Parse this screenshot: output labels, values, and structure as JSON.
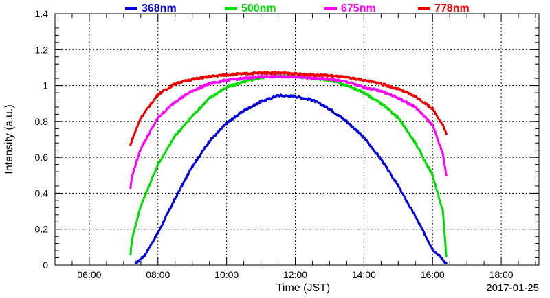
{
  "chart_data": {
    "type": "line",
    "title": "",
    "xlabel": "Time (JST)",
    "ylabel": "Intensity (a.u.)",
    "date_label": "2017-01-25",
    "x_unit": "hour_of_day_JST",
    "xlim": [
      5,
      19.1
    ],
    "ylim": [
      0,
      1.4
    ],
    "x_ticks": [
      6,
      8,
      10,
      12,
      14,
      16,
      18
    ],
    "x_tick_labels": [
      "06:00",
      "08:00",
      "10:00",
      "12:00",
      "14:00",
      "16:00",
      "18:00"
    ],
    "y_ticks": [
      0,
      0.2,
      0.4,
      0.6,
      0.8,
      1,
      1.2,
      1.4
    ],
    "y_tick_labels": [
      "0",
      "0.2",
      "0.4",
      "0.6",
      "0.8",
      "1",
      "1.2",
      "1.4"
    ],
    "grid": true,
    "legend_placement": "top",
    "series": [
      {
        "name": "368nm",
        "color": "#0000dd",
        "points": [
          [
            7.35,
            0.01
          ],
          [
            7.6,
            0.05
          ],
          [
            8.0,
            0.18
          ],
          [
            8.5,
            0.37
          ],
          [
            9.0,
            0.55
          ],
          [
            9.5,
            0.69
          ],
          [
            10.0,
            0.79
          ],
          [
            10.5,
            0.86
          ],
          [
            11.0,
            0.91
          ],
          [
            11.5,
            0.945
          ],
          [
            12.0,
            0.94
          ],
          [
            12.5,
            0.92
          ],
          [
            13.0,
            0.87
          ],
          [
            13.5,
            0.8
          ],
          [
            14.0,
            0.71
          ],
          [
            14.5,
            0.59
          ],
          [
            15.0,
            0.44
          ],
          [
            15.5,
            0.27
          ],
          [
            16.0,
            0.09
          ],
          [
            16.4,
            0.01
          ]
        ]
      },
      {
        "name": "500nm",
        "color": "#00dd00",
        "points": [
          [
            7.2,
            0.06
          ],
          [
            7.25,
            0.15
          ],
          [
            7.5,
            0.33
          ],
          [
            8.0,
            0.56
          ],
          [
            8.5,
            0.72
          ],
          [
            9.0,
            0.83
          ],
          [
            9.5,
            0.93
          ],
          [
            10.0,
            0.99
          ],
          [
            10.5,
            1.02
          ],
          [
            11.0,
            1.045
          ],
          [
            11.5,
            1.055
          ],
          [
            12.0,
            1.05
          ],
          [
            12.5,
            1.04
          ],
          [
            13.0,
            1.03
          ],
          [
            13.5,
            1.0
          ],
          [
            14.0,
            0.96
          ],
          [
            14.5,
            0.9
          ],
          [
            15.0,
            0.82
          ],
          [
            15.5,
            0.68
          ],
          [
            16.0,
            0.5
          ],
          [
            16.3,
            0.3
          ],
          [
            16.4,
            0.05
          ]
        ]
      },
      {
        "name": "675nm",
        "color": "#ff00ff",
        "points": [
          [
            7.2,
            0.43
          ],
          [
            7.25,
            0.5
          ],
          [
            7.5,
            0.65
          ],
          [
            8.0,
            0.82
          ],
          [
            8.5,
            0.91
          ],
          [
            9.0,
            0.97
          ],
          [
            9.5,
            1.01
          ],
          [
            10.0,
            1.03
          ],
          [
            10.5,
            1.04
          ],
          [
            11.0,
            1.05
          ],
          [
            11.5,
            1.05
          ],
          [
            12.0,
            1.05
          ],
          [
            12.5,
            1.04
          ],
          [
            13.0,
            1.035
          ],
          [
            13.5,
            1.02
          ],
          [
            14.0,
            0.99
          ],
          [
            14.5,
            0.97
          ],
          [
            15.0,
            0.93
          ],
          [
            15.5,
            0.88
          ],
          [
            16.0,
            0.78
          ],
          [
            16.3,
            0.62
          ],
          [
            16.4,
            0.5
          ]
        ]
      },
      {
        "name": "778nm",
        "color": "#ee0000",
        "points": [
          [
            7.2,
            0.67
          ],
          [
            7.25,
            0.7
          ],
          [
            7.5,
            0.82
          ],
          [
            8.0,
            0.95
          ],
          [
            8.5,
            1.01
          ],
          [
            9.0,
            1.035
          ],
          [
            9.5,
            1.05
          ],
          [
            10.0,
            1.06
          ],
          [
            10.5,
            1.065
          ],
          [
            11.0,
            1.07
          ],
          [
            11.5,
            1.07
          ],
          [
            12.0,
            1.065
          ],
          [
            12.5,
            1.06
          ],
          [
            13.0,
            1.055
          ],
          [
            13.5,
            1.045
          ],
          [
            14.0,
            1.03
          ],
          [
            14.5,
            1.01
          ],
          [
            15.0,
            0.98
          ],
          [
            15.5,
            0.94
          ],
          [
            16.0,
            0.87
          ],
          [
            16.3,
            0.78
          ],
          [
            16.4,
            0.73
          ]
        ]
      }
    ]
  }
}
